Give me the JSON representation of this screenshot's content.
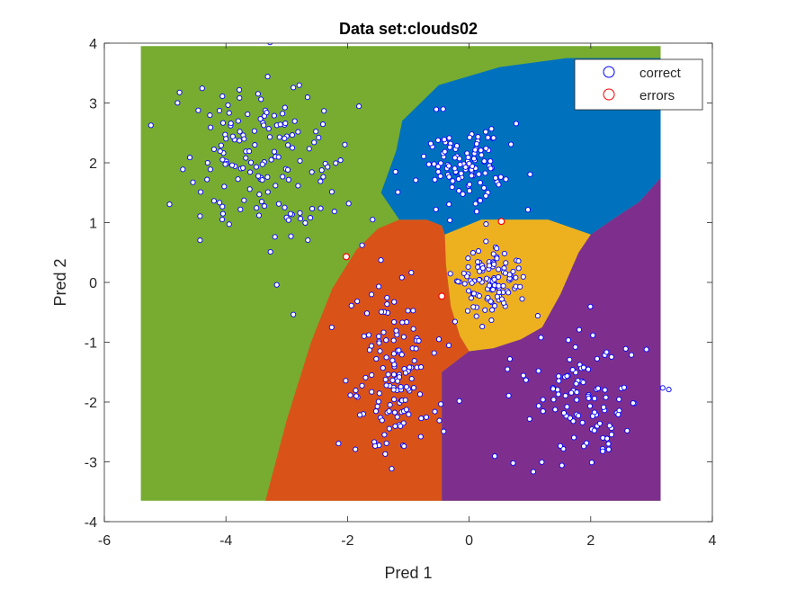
{
  "chart_data": {
    "type": "scatter",
    "title": "Data set:clouds02",
    "xlabel": "Pred 1",
    "ylabel": "Pred 2",
    "xlim": [
      -6,
      4
    ],
    "ylim": [
      -4,
      4
    ],
    "xticks": [
      -6,
      -4,
      -2,
      0,
      2,
      4
    ],
    "yticks": [
      -4,
      -3,
      -2,
      -1,
      0,
      1,
      2,
      3,
      4
    ],
    "xtick_labels": [
      "-6",
      "-4",
      "-2",
      "0",
      "2",
      "4"
    ],
    "ytick_labels": [
      "-4",
      "-3",
      "-2",
      "-1",
      "0",
      "1",
      "2",
      "3",
      "4"
    ],
    "grid": false,
    "legend": {
      "location": "top-right",
      "entries": [
        {
          "label": "correct",
          "color": "#0000ff"
        },
        {
          "label": "errors",
          "color": "#ff0000"
        }
      ]
    },
    "decision_regions": {
      "extent": {
        "x": [
          -5.4,
          3.15
        ],
        "y": [
          -3.65,
          3.95
        ]
      },
      "colors": {
        "green": "#77ac30",
        "blue": "#0072bd",
        "orange": "#d95319",
        "yellow": "#edb120",
        "purple": "#7e2f8e"
      }
    },
    "clusters": [
      {
        "region": "green",
        "center": [
          -3.5,
          2.0
        ],
        "spread": [
          0.65,
          0.7
        ],
        "count": 160
      },
      {
        "region": "blue",
        "center": [
          0.0,
          2.0
        ],
        "spread": [
          0.4,
          0.35
        ],
        "count": 110
      },
      {
        "region": "yellow",
        "center": [
          0.35,
          0.0
        ],
        "spread": [
          0.25,
          0.25
        ],
        "count": 110
      },
      {
        "region": "orange",
        "center": [
          -1.2,
          -1.6
        ],
        "spread": [
          0.35,
          0.7
        ],
        "count": 140
      },
      {
        "region": "purple",
        "center": [
          1.8,
          -1.9
        ],
        "spread": [
          0.6,
          0.55
        ],
        "count": 110
      }
    ],
    "series": [
      {
        "name": "errors",
        "color": "#ff0000",
        "points": [
          [
            -2.02,
            0.43
          ],
          [
            -0.45,
            -0.23
          ],
          [
            0.53,
            1.02
          ]
        ]
      }
    ]
  }
}
